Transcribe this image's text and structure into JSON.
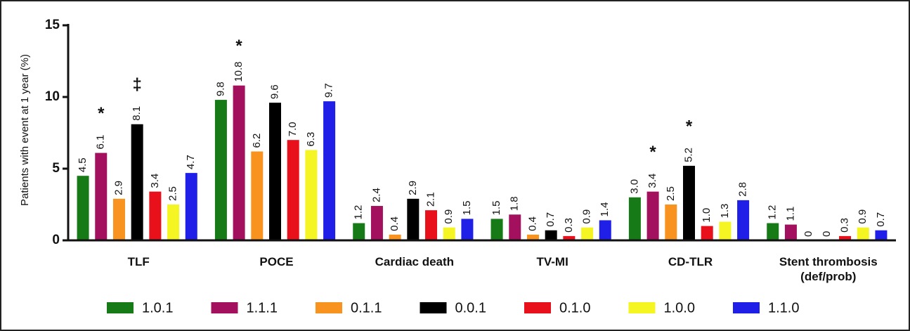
{
  "chart_data": {
    "type": "bar",
    "y_label": "Patients with event at 1 year (%)",
    "categories": [
      "TLF",
      "POCE",
      "Cardiac death",
      "TV-MI",
      "CD-TLR",
      "Stent thrombosis\n(def/prob)"
    ],
    "ylim": [
      0,
      15
    ],
    "yticks": [
      0,
      5,
      10,
      15
    ],
    "series": [
      {
        "name": "1.0.1",
        "color": "#167a16",
        "values": [
          4.5,
          9.8,
          1.2,
          1.5,
          3.0,
          1.2
        ],
        "value_labels": [
          "4.5",
          "9.8",
          "1.2",
          "1.5",
          "3.0",
          "1.2"
        ],
        "annotations": [
          null,
          null,
          null,
          null,
          null,
          null
        ]
      },
      {
        "name": "1.1.1",
        "color": "#a3115e",
        "values": [
          6.1,
          10.8,
          2.4,
          1.8,
          3.4,
          1.1
        ],
        "value_labels": [
          "6.1",
          "10.8",
          "2.4",
          "1.8",
          "3.4",
          "1.1"
        ],
        "annotations": [
          "*",
          "*",
          null,
          null,
          "*",
          null
        ]
      },
      {
        "name": "0.1.1",
        "color": "#f7931e",
        "values": [
          2.9,
          6.2,
          0.4,
          0.4,
          2.5,
          0
        ],
        "value_labels": [
          "2.9",
          "6.2",
          "0.4",
          "0.4",
          "2.5",
          "0"
        ],
        "annotations": [
          null,
          null,
          null,
          null,
          null,
          null
        ]
      },
      {
        "name": "0.0.1",
        "color": "#000000",
        "values": [
          8.1,
          9.6,
          2.9,
          0.7,
          5.2,
          0
        ],
        "value_labels": [
          "8.1",
          "9.6",
          "2.9",
          "0.7",
          "5.2",
          "0"
        ],
        "annotations": [
          "‡",
          null,
          null,
          null,
          "*",
          null
        ]
      },
      {
        "name": "0.1.0",
        "color": "#e8101a",
        "values": [
          3.4,
          7.0,
          2.1,
          0.3,
          1.0,
          0.3
        ],
        "value_labels": [
          "3.4",
          "7.0",
          "2.1",
          "0.3",
          "1.0",
          "0.3"
        ],
        "annotations": [
          null,
          null,
          null,
          null,
          null,
          null
        ]
      },
      {
        "name": "1.0.0",
        "color": "#f5f523",
        "values": [
          2.5,
          6.3,
          0.9,
          0.9,
          1.3,
          0.9
        ],
        "value_labels": [
          "2.5",
          "6.3",
          "0.9",
          "0.9",
          "1.3",
          "0.9"
        ],
        "annotations": [
          null,
          null,
          null,
          null,
          null,
          null
        ]
      },
      {
        "name": "1.1.0",
        "color": "#1f1fe8",
        "values": [
          4.7,
          9.7,
          1.5,
          1.4,
          2.8,
          0.7
        ],
        "value_labels": [
          "4.7",
          "9.7",
          "1.5",
          "1.4",
          "2.8",
          "0.7"
        ],
        "annotations": [
          null,
          null,
          null,
          null,
          null,
          null
        ]
      }
    ]
  }
}
